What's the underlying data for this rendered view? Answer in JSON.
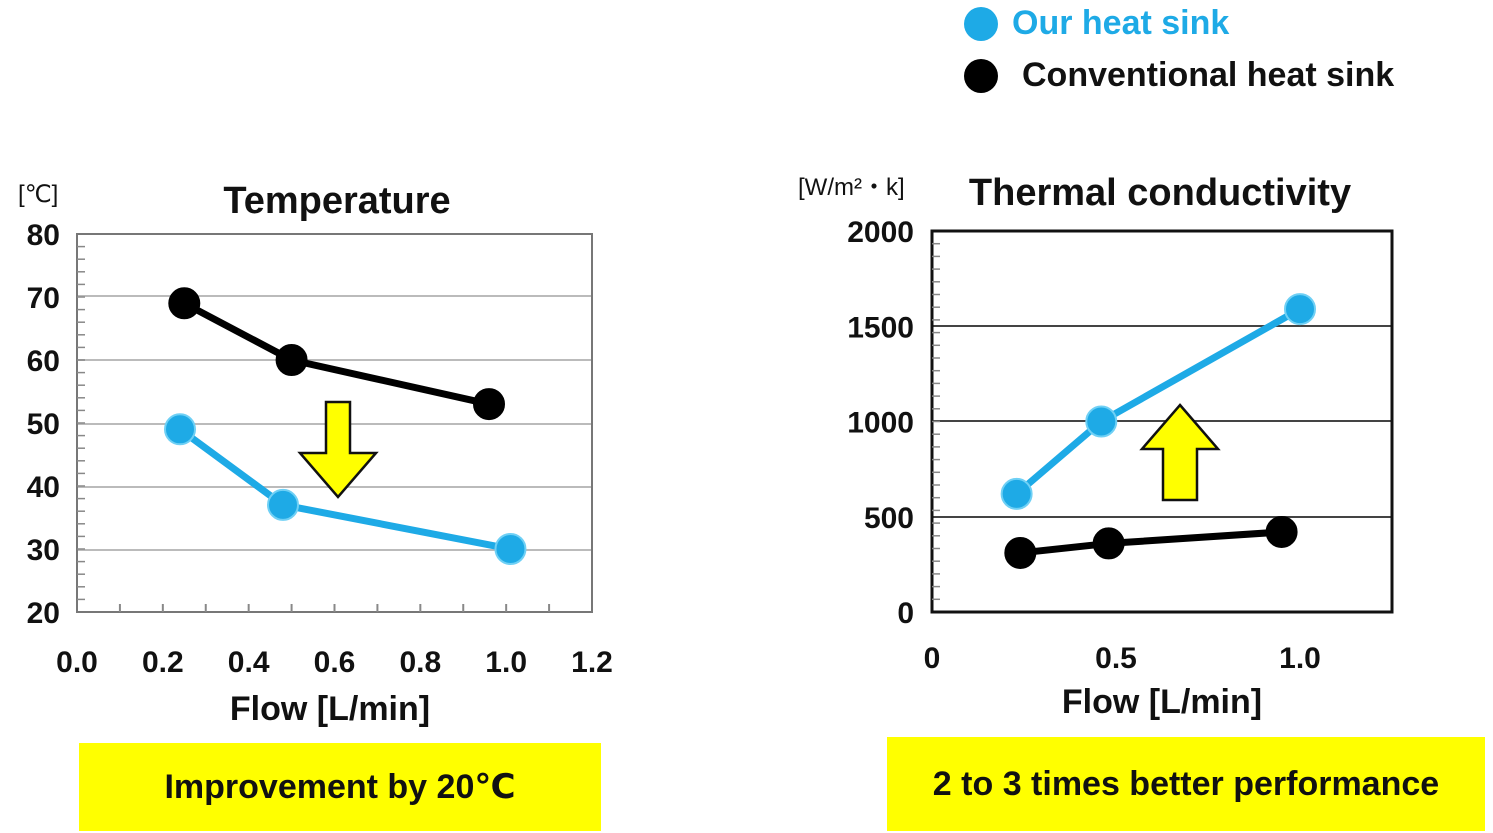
{
  "legend": {
    "items": [
      {
        "label": "Our heat sink",
        "color": "#1eaae6"
      },
      {
        "label": "Conventional heat sink",
        "color": "#000000"
      }
    ]
  },
  "callouts": {
    "left": "Improvement by 20℃",
    "right": "2 to 3 times better performance"
  },
  "chart_data": [
    {
      "type": "line",
      "title": "Temperature",
      "unit_label": "[℃]",
      "xlabel": "Flow [L/min]",
      "ylabel": "",
      "xlim": [
        0.0,
        1.2
      ],
      "ylim": [
        20,
        80
      ],
      "xticks": [
        "0.0",
        "0.2",
        "0.4",
        "0.6",
        "0.8",
        "1.0",
        "1.2"
      ],
      "yticks": [
        "20",
        "30",
        "40",
        "50",
        "60",
        "70",
        "80"
      ],
      "grid": true,
      "arrow": "down",
      "series": [
        {
          "name": "Conventional heat sink",
          "color": "#000000",
          "x": [
            0.25,
            0.5,
            0.96
          ],
          "y": [
            69,
            60,
            53
          ]
        },
        {
          "name": "Our heat sink",
          "color": "#1eaae6",
          "x": [
            0.24,
            0.48,
            1.01
          ],
          "y": [
            49,
            37,
            30
          ]
        }
      ]
    },
    {
      "type": "line",
      "title": "Thermal conductivity",
      "unit_label": "[W/m²・k]",
      "xlabel": "Flow [L/min]",
      "ylabel": "",
      "xlim": [
        0,
        1.25
      ],
      "ylim": [
        0,
        2000
      ],
      "xticks": [
        "0",
        "0.5",
        "1.0"
      ],
      "yticks": [
        "0",
        "500",
        "1000",
        "1500",
        "2000"
      ],
      "grid": true,
      "arrow": "up",
      "series": [
        {
          "name": "Our heat sink",
          "color": "#1eaae6",
          "x": [
            0.23,
            0.46,
            1.0
          ],
          "y": [
            620,
            1000,
            1590
          ]
        },
        {
          "name": "Conventional heat sink",
          "color": "#000000",
          "x": [
            0.24,
            0.48,
            0.95
          ],
          "y": [
            310,
            360,
            420
          ]
        }
      ]
    }
  ]
}
